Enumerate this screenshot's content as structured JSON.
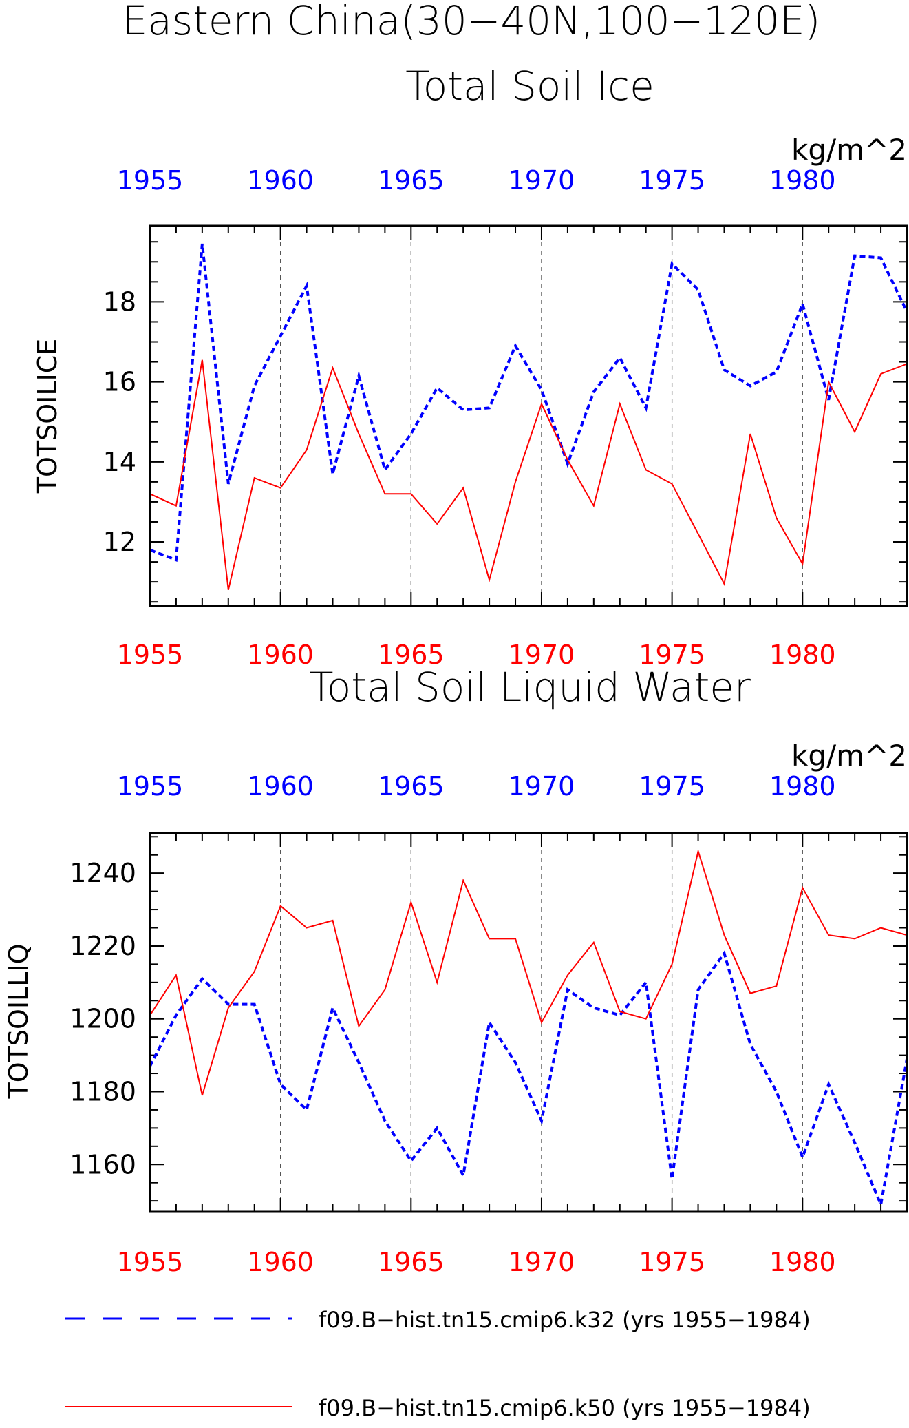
{
  "figure": {
    "title_line1": "Eastern China(30−40N,100−120E)",
    "colors": {
      "k32": "#0000ff",
      "k50": "#ff0000",
      "grid": "#555555",
      "axis": "#000000"
    }
  },
  "legend": [
    {
      "label": "f09.B−hist.tn15.cmip6.k32 (yrs 1955−1984)",
      "color": "#0000ff",
      "style": "dashed"
    },
    {
      "label": "f09.B−hist.tn15.cmip6.k50 (yrs 1955−1984)",
      "color": "#ff0000",
      "style": "solid"
    }
  ],
  "chart_data": [
    {
      "type": "line",
      "title": "Total Soil Ice",
      "units": "kg/m^2",
      "ylabel": "TOTSOILICE",
      "xlim": [
        1955,
        1984
      ],
      "ylim": [
        10.4,
        19.9
      ],
      "x_ticks": [
        1955,
        1960,
        1965,
        1970,
        1975,
        1980
      ],
      "x_tick_labels": [
        "1955",
        "1960",
        "1965",
        "1970",
        "1975",
        "1980"
      ],
      "y_ticks": [
        12,
        14,
        16,
        18
      ],
      "y_tick_labels": [
        "12",
        "14",
        "16",
        "18"
      ],
      "grid_x": [
        1960,
        1965,
        1970,
        1975,
        1980
      ],
      "x": [
        1955,
        1956,
        1957,
        1958,
        1959,
        1960,
        1961,
        1962,
        1963,
        1964,
        1965,
        1966,
        1967,
        1968,
        1969,
        1970,
        1971,
        1972,
        1973,
        1974,
        1975,
        1976,
        1977,
        1978,
        1979,
        1980,
        1981,
        1982,
        1983,
        1984
      ],
      "series": [
        {
          "name": "f09.B−hist.tn15.cmip6.k32 (yrs 1955−1984)",
          "color": "#0000ff",
          "dash": "dashed",
          "values": [
            11.8,
            11.55,
            19.45,
            13.45,
            15.9,
            17.15,
            18.4,
            13.7,
            16.15,
            13.8,
            14.7,
            15.85,
            15.3,
            15.35,
            16.9,
            15.8,
            13.95,
            15.75,
            16.6,
            15.35,
            18.95,
            18.3,
            16.3,
            15.9,
            16.25,
            17.95,
            15.55,
            19.15,
            19.1,
            17.75
          ]
        },
        {
          "name": "f09.B−hist.tn15.cmip6.k50 (yrs 1955−1984)",
          "color": "#ff0000",
          "dash": "solid",
          "values": [
            13.2,
            12.9,
            16.55,
            10.8,
            13.6,
            13.35,
            14.3,
            16.35,
            14.7,
            13.2,
            13.2,
            12.45,
            13.35,
            11.05,
            13.5,
            15.45,
            14.05,
            12.9,
            15.45,
            13.8,
            13.45,
            12.2,
            10.95,
            14.7,
            12.6,
            11.45,
            16.0,
            14.75,
            16.2,
            16.45
          ]
        }
      ]
    },
    {
      "type": "line",
      "title": "Total Soil Liquid Water",
      "units": "kg/m^2",
      "ylabel": "TOTSOILLIQ",
      "xlim": [
        1955,
        1984
      ],
      "ylim": [
        1147,
        1251
      ],
      "x_ticks": [
        1955,
        1960,
        1965,
        1970,
        1975,
        1980
      ],
      "x_tick_labels": [
        "1955",
        "1960",
        "1965",
        "1970",
        "1975",
        "1980"
      ],
      "y_ticks": [
        1160,
        1180,
        1200,
        1220,
        1240
      ],
      "y_tick_labels": [
        "1160",
        "1180",
        "1200",
        "1220",
        "1240"
      ],
      "grid_x": [
        1960,
        1965,
        1970,
        1975,
        1980
      ],
      "x": [
        1955,
        1956,
        1957,
        1958,
        1959,
        1960,
        1961,
        1962,
        1963,
        1964,
        1965,
        1966,
        1967,
        1968,
        1969,
        1970,
        1971,
        1972,
        1973,
        1974,
        1975,
        1976,
        1977,
        1978,
        1979,
        1980,
        1981,
        1982,
        1983,
        1984
      ],
      "series": [
        {
          "name": "f09.B−hist.tn15.cmip6.k32 (yrs 1955−1984)",
          "color": "#0000ff",
          "dash": "dashed",
          "values": [
            1187,
            1201,
            1211,
            1204,
            1204,
            1182,
            1175,
            1203,
            1188,
            1172,
            1161,
            1170,
            1157,
            1199,
            1188,
            1172,
            1208,
            1203,
            1201,
            1210,
            1156,
            1208,
            1218,
            1193,
            1180,
            1162,
            1182,
            1166,
            1149,
            1189
          ]
        },
        {
          "name": "f09.B−hist.tn15.cmip6.k50 (yrs 1955−1984)",
          "color": "#ff0000",
          "dash": "solid",
          "values": [
            1201,
            1212,
            1179,
            1203,
            1213,
            1231,
            1225,
            1227,
            1198,
            1208,
            1232,
            1210,
            1238,
            1222,
            1222,
            1199,
            1212,
            1221,
            1202,
            1200,
            1215,
            1246,
            1223,
            1207,
            1209,
            1236,
            1223,
            1222,
            1225,
            1223
          ]
        }
      ]
    }
  ]
}
